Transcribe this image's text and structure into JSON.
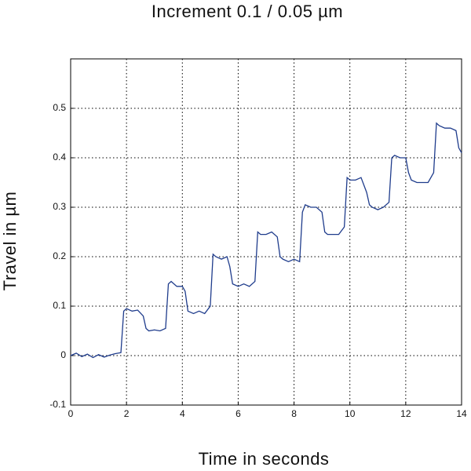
{
  "chart_data": {
    "type": "line",
    "title": "Increment 0.1 / 0.05 µm",
    "x_label": "Time in seconds",
    "y_label": "Travel in µm",
    "color": "#1f3c8c",
    "grid": true,
    "xlim": [
      0,
      14
    ],
    "xticks": [
      0,
      2,
      4,
      6,
      8,
      10,
      12,
      14
    ],
    "ylim": [
      -0.1,
      0.6
    ],
    "yticks": [
      -0.1,
      0,
      0.1,
      0.2,
      0.3,
      0.4,
      0.5
    ],
    "x": [
      0,
      0.2,
      0.4,
      0.6,
      0.8,
      1.0,
      1.2,
      1.4,
      1.6,
      1.8,
      1.9,
      2.0,
      2.2,
      2.4,
      2.6,
      2.7,
      2.8,
      3.0,
      3.2,
      3.4,
      3.5,
      3.6,
      3.8,
      4.0,
      4.1,
      4.2,
      4.4,
      4.6,
      4.8,
      5.0,
      5.1,
      5.2,
      5.4,
      5.6,
      5.7,
      5.8,
      6.0,
      6.2,
      6.4,
      6.6,
      6.7,
      6.8,
      7.0,
      7.2,
      7.4,
      7.5,
      7.6,
      7.8,
      8.0,
      8.2,
      8.3,
      8.4,
      8.6,
      8.8,
      9.0,
      9.1,
      9.2,
      9.4,
      9.6,
      9.8,
      9.9,
      10.0,
      10.2,
      10.4,
      10.6,
      10.7,
      10.8,
      11.0,
      11.2,
      11.4,
      11.5,
      11.6,
      11.8,
      12.0,
      12.1,
      12.2,
      12.4,
      12.6,
      12.8,
      13.0,
      13.1,
      13.2,
      13.4,
      13.6,
      13.8,
      13.9,
      14.0
    ],
    "values": [
      0.0,
      0.005,
      -0.002,
      0.003,
      -0.004,
      0.002,
      -0.003,
      0.001,
      0.004,
      0.006,
      0.09,
      0.095,
      0.09,
      0.092,
      0.08,
      0.055,
      0.05,
      0.052,
      0.05,
      0.055,
      0.145,
      0.15,
      0.14,
      0.14,
      0.13,
      0.09,
      0.085,
      0.09,
      0.085,
      0.1,
      0.205,
      0.2,
      0.195,
      0.2,
      0.18,
      0.145,
      0.14,
      0.145,
      0.14,
      0.15,
      0.25,
      0.245,
      0.245,
      0.25,
      0.24,
      0.2,
      0.195,
      0.19,
      0.195,
      0.19,
      0.29,
      0.305,
      0.3,
      0.3,
      0.29,
      0.25,
      0.245,
      0.245,
      0.245,
      0.26,
      0.36,
      0.355,
      0.355,
      0.36,
      0.33,
      0.305,
      0.3,
      0.295,
      0.3,
      0.31,
      0.4,
      0.405,
      0.4,
      0.4,
      0.37,
      0.355,
      0.35,
      0.35,
      0.35,
      0.37,
      0.47,
      0.465,
      0.46,
      0.46,
      0.455,
      0.42,
      0.41
    ]
  }
}
